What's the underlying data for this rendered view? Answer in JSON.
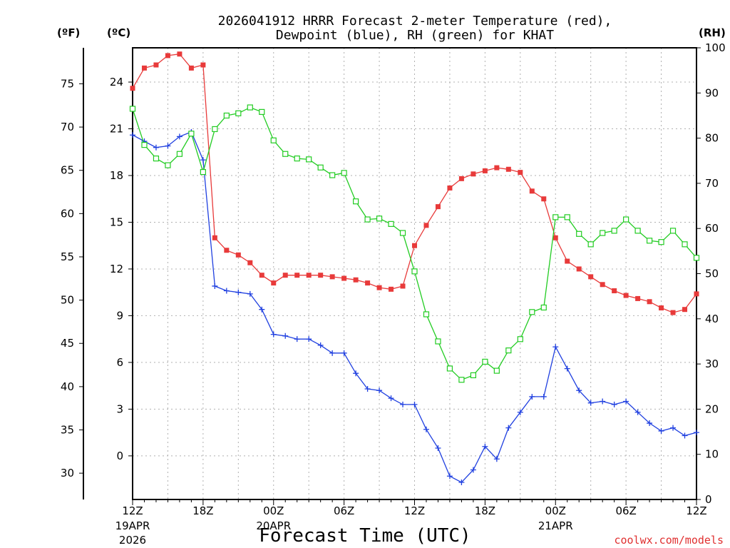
{
  "chart_data": {
    "type": "line",
    "title_line1": "2026041912 HRRR Forecast 2-meter Temperature (red),",
    "title_line2": "Dewpoint (blue), RH (green) for KHAT",
    "xlabel": "Forecast Time (UTC)",
    "credit": "coolwx.com/models",
    "unit_f": "(ºF)",
    "unit_c": "(ºC)",
    "unit_rh": "(RH)",
    "x_range_hours": [
      0,
      48
    ],
    "y_celsius_range": [
      -2.8,
      26.2
    ],
    "y_rh_range": [
      0,
      100
    ],
    "x_ticks": [
      {
        "hour": 0,
        "label": "12Z",
        "sub1": "19APR",
        "sub2": "2026"
      },
      {
        "hour": 6,
        "label": "18Z",
        "sub1": "",
        "sub2": ""
      },
      {
        "hour": 12,
        "label": "00Z",
        "sub1": "20APR",
        "sub2": ""
      },
      {
        "hour": 18,
        "label": "06Z",
        "sub1": "",
        "sub2": ""
      },
      {
        "hour": 24,
        "label": "12Z",
        "sub1": "",
        "sub2": ""
      },
      {
        "hour": 30,
        "label": "18Z",
        "sub1": "",
        "sub2": ""
      },
      {
        "hour": 36,
        "label": "00Z",
        "sub1": "21APR",
        "sub2": ""
      },
      {
        "hour": 42,
        "label": "06Z",
        "sub1": "",
        "sub2": ""
      },
      {
        "hour": 48,
        "label": "12Z",
        "sub1": "",
        "sub2": ""
      }
    ],
    "celsius_ticks": [
      "0",
      "3",
      "6",
      "9",
      "12",
      "15",
      "18",
      "21",
      "24"
    ],
    "fahrenheit_ticks": [
      "30",
      "35",
      "40",
      "45",
      "50",
      "55",
      "60",
      "65",
      "70",
      "75"
    ],
    "rh_ticks": [
      "0",
      "10",
      "20",
      "30",
      "40",
      "50",
      "60",
      "70",
      "80",
      "90",
      "100"
    ],
    "series": [
      {
        "name": "Temperature",
        "color": "#e83a3a",
        "marker": "filled-square",
        "axis": "celsius",
        "x": [
          0,
          1,
          2,
          3,
          4,
          5,
          6,
          7,
          8,
          9,
          10,
          11,
          12,
          13,
          14,
          15,
          16,
          17,
          18,
          19,
          20,
          21,
          22,
          23,
          24,
          25,
          26,
          27,
          28,
          29,
          30,
          31,
          32,
          33,
          34,
          35,
          36,
          37,
          38,
          39,
          40,
          41,
          42,
          43,
          44,
          45,
          46,
          47,
          48
        ],
        "y": [
          23.6,
          24.9,
          25.1,
          25.7,
          25.8,
          24.9,
          25.1,
          14.0,
          13.2,
          12.9,
          12.4,
          11.6,
          11.1,
          11.6,
          11.6,
          11.6,
          11.6,
          11.5,
          11.4,
          11.3,
          11.1,
          10.8,
          10.7,
          10.9,
          13.5,
          14.8,
          16.0,
          17.2,
          17.8,
          18.1,
          18.3,
          18.5,
          18.4,
          18.2,
          17.0,
          16.5,
          14.0,
          12.5,
          12.0,
          11.5,
          11.0,
          10.6,
          10.3,
          10.1,
          9.9,
          9.5,
          9.2,
          9.4,
          10.4
        ]
      },
      {
        "name": "Dewpoint",
        "color": "#2040e0",
        "marker": "plus",
        "axis": "celsius",
        "x": [
          0,
          1,
          2,
          3,
          4,
          5,
          6,
          7,
          8,
          9,
          10,
          11,
          12,
          13,
          14,
          15,
          16,
          17,
          18,
          19,
          20,
          21,
          22,
          23,
          24,
          25,
          26,
          27,
          28,
          29,
          30,
          31,
          32,
          33,
          34,
          35,
          36,
          37,
          38,
          39,
          40,
          41,
          42,
          43,
          44,
          45,
          46,
          47,
          48
        ],
        "y": [
          20.6,
          20.2,
          19.8,
          19.9,
          20.5,
          20.8,
          19.0,
          10.9,
          10.6,
          10.5,
          10.4,
          9.4,
          7.8,
          7.7,
          7.5,
          7.5,
          7.1,
          6.6,
          6.6,
          5.3,
          4.3,
          4.2,
          3.7,
          3.3,
          3.3,
          1.7,
          0.5,
          -1.3,
          -1.7,
          -0.9,
          0.6,
          -0.2,
          1.8,
          2.8,
          3.8,
          3.8,
          7.0,
          5.6,
          4.2,
          3.4,
          3.5,
          3.3,
          3.5,
          2.8,
          2.1,
          1.6,
          1.8,
          1.3,
          1.5
        ]
      },
      {
        "name": "RH",
        "color": "#22cc22",
        "marker": "open-square",
        "axis": "rh",
        "x": [
          0,
          1,
          2,
          3,
          4,
          5,
          6,
          7,
          8,
          9,
          10,
          11,
          12,
          13,
          14,
          15,
          16,
          17,
          18,
          19,
          20,
          21,
          22,
          23,
          24,
          25,
          26,
          27,
          28,
          29,
          30,
          31,
          32,
          33,
          34,
          35,
          36,
          37,
          38,
          39,
          40,
          41,
          42,
          43,
          44,
          45,
          46,
          47,
          48
        ],
        "y": [
          86.5,
          78.5,
          75.5,
          74.0,
          76.5,
          81.0,
          72.5,
          82.0,
          85.0,
          85.5,
          86.8,
          85.8,
          79.5,
          76.5,
          75.5,
          75.3,
          73.5,
          71.8,
          72.3,
          66.0,
          62.0,
          62.2,
          61.0,
          59.0,
          50.5,
          41.0,
          35.0,
          29.0,
          26.5,
          27.5,
          30.5,
          28.5,
          33.0,
          35.5,
          41.5,
          42.5,
          62.5,
          62.5,
          58.8,
          56.5,
          59.0,
          59.5,
          62.0,
          59.5,
          57.3,
          57.0,
          59.5,
          56.5,
          53.5
        ]
      }
    ]
  }
}
